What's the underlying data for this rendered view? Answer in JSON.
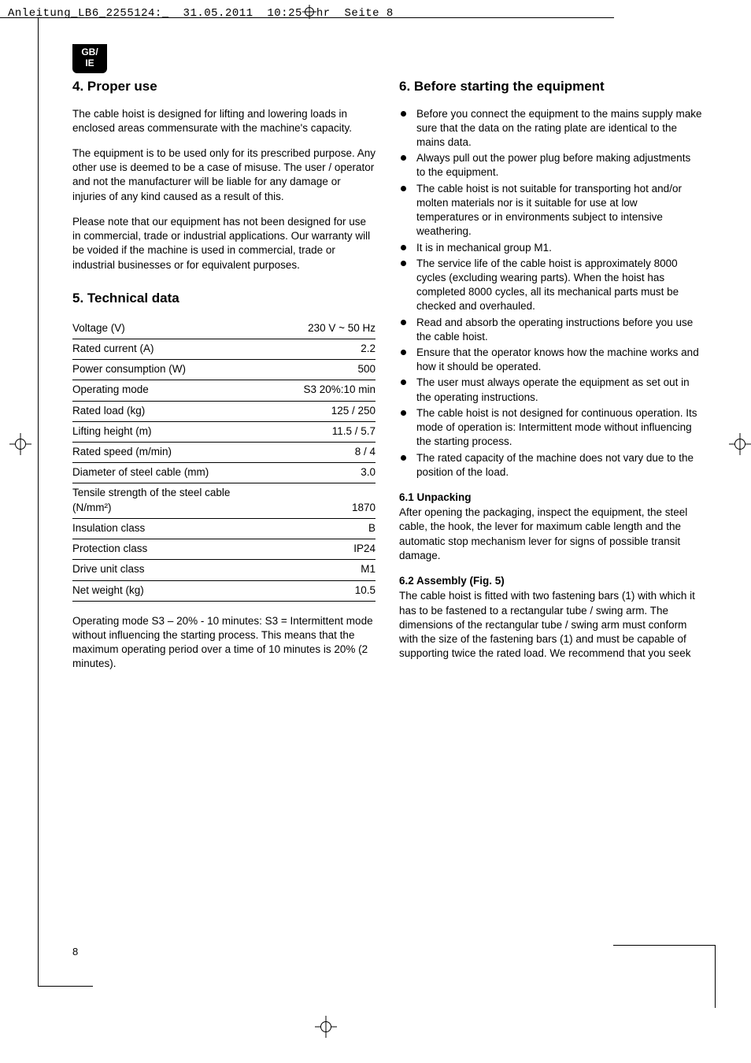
{
  "header": {
    "file": "Anleitung_LB6_2255124:_",
    "date": "31.05.2011",
    "time_pre": "10:25",
    "time_post": "hr",
    "page": "Seite 8"
  },
  "badge": {
    "line1": "GB/",
    "line2": "IE"
  },
  "left": {
    "s4_title": "4. Proper use",
    "s4_p1": "The cable hoist is designed for lifting and lowering loads in enclosed areas commensurate with the machine's capacity.",
    "s4_p2": "The equipment is to be used only for its prescribed purpose. Any other use is deemed to be a case of misuse. The user / operator and not the manufacturer will be liable for any damage or injuries of any kind caused as a result of this.",
    "s4_p3": "Please note that our equipment has not been designed for use in commercial, trade or industrial applications. Our warranty will be voided if the machine is used in commercial, trade or industrial businesses or for equivalent purposes.",
    "s5_title": "5. Technical data",
    "spec": [
      {
        "label": "Voltage (V)",
        "value": "230 V ~ 50 Hz"
      },
      {
        "label": "Rated current (A)",
        "value": "2.2"
      },
      {
        "label": "Power consumption (W)",
        "value": "500"
      },
      {
        "label": "Operating mode",
        "value": "S3 20%:10 min"
      },
      {
        "label": "Rated load (kg)",
        "value": "125 / 250"
      },
      {
        "label": "Lifting height (m)",
        "value": "11.5 / 5.7"
      },
      {
        "label": "Rated speed (m/min)",
        "value": "8 / 4"
      },
      {
        "label": "Diameter of steel cable (mm)",
        "value": "3.0"
      }
    ],
    "spec_split": {
      "label1": "Tensile strength of the steel cable",
      "label2": "(N/mm²)",
      "value": "1870"
    },
    "spec_tail": [
      {
        "label": "Insulation class",
        "value": "B"
      },
      {
        "label": "Protection class",
        "value": "IP24"
      },
      {
        "label": "Drive unit class",
        "value": "M1"
      },
      {
        "label": "Net weight (kg)",
        "value": "10.5"
      }
    ],
    "s5_note": "Operating mode S3 – 20% - 10 minutes: S3 = Intermittent mode without influencing the starting process. This means that the maximum operating period over a time of 10 minutes is 20% (2 minutes)."
  },
  "right": {
    "s6_title": "6. Before starting the equipment",
    "bullets": [
      "Before you connect the equipment to the mains supply make sure that the data on the rating plate are identical to the mains data.",
      "Always pull out the power plug before making adjustments to the equipment.",
      "The cable hoist is not suitable for transporting hot and/or molten materials nor is it suitable for use at low temperatures or in environments subject to intensive weathering.",
      "It is in mechanical group M1.",
      "The service life of the cable hoist is approximately 8000 cycles (excluding wearing parts). When the hoist has completed 8000 cycles, all its mechanical parts must be checked and overhauled.",
      "Read and absorb the operating instructions before you use the cable hoist.",
      "Ensure that the operator knows how the machine works and how it should be operated.",
      "The user must always operate the equipment as set out in the operating instructions.",
      "The cable hoist is not designed for continuous operation. Its mode of operation is: Intermittent mode without influencing the starting process.",
      "The rated capacity of the machine does not vary due to the position of the load."
    ],
    "s61_title": "6.1 Unpacking",
    "s61_p": "After opening the packaging, inspect the equipment, the steel cable, the hook, the lever for maximum cable length and the automatic stop mechanism lever for signs of possible transit damage.",
    "s62_title": "6.2 Assembly (Fig. 5)",
    "s62_p": "The cable hoist is fitted with two fastening bars (1) with which it has to be fastened to a rectangular tube / swing arm. The dimensions of the rectangular tube / swing arm must conform with the size of the fastening bars (1) and must be capable of supporting twice the rated load. We recommend that you seek"
  },
  "page_number": "8"
}
